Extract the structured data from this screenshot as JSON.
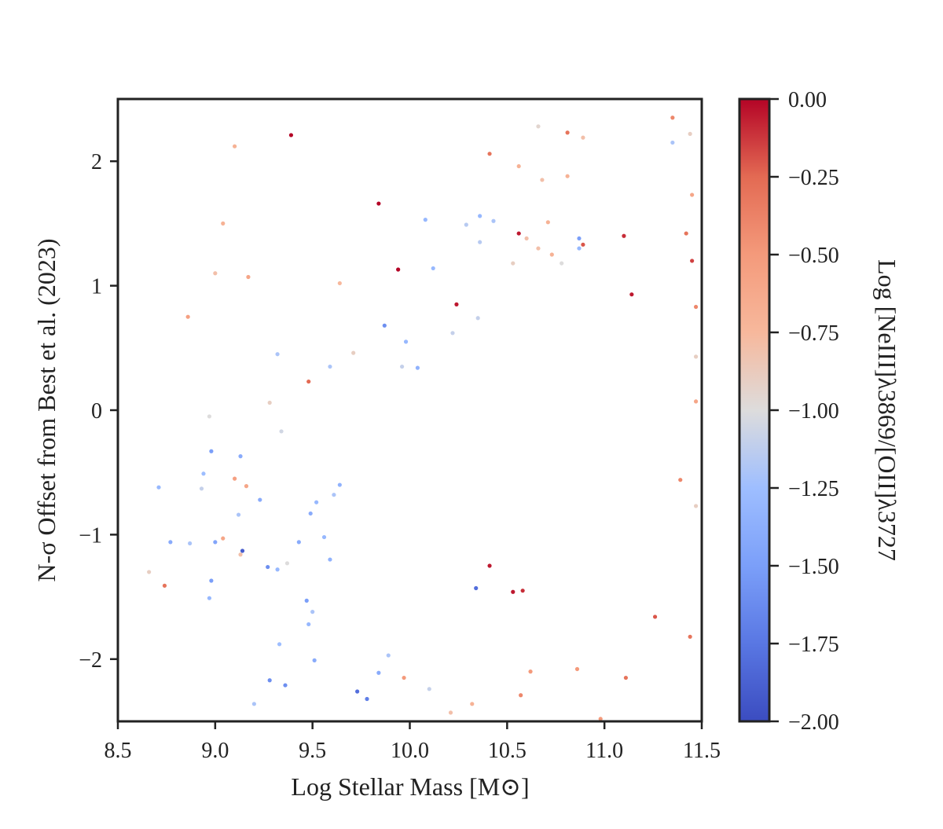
{
  "chart_data": {
    "type": "scatter",
    "title": "",
    "xlabel": "Log Stellar Mass [M⊙]",
    "ylabel": "N-σ Offset from Best et al. (2023)",
    "xlim": [
      8.5,
      11.5
    ],
    "ylim": [
      -2.5,
      2.5
    ],
    "x_ticks": [
      "8.5",
      "9.0",
      "9.5",
      "10.0",
      "10.5",
      "11.0",
      "11.5"
    ],
    "y_ticks": [
      "−2",
      "−1",
      "0",
      "1",
      "2"
    ],
    "grid": false,
    "colorbar": {
      "label": "Log [NeIII]λ3869/[OII]λ3727",
      "colormap": "coolwarm",
      "range": [
        -2.0,
        0.0
      ],
      "ticks": [
        "0.00",
        "−0.25",
        "−0.50",
        "−0.75",
        "−1.00",
        "−1.25",
        "−1.50",
        "−1.75",
        "−2.00"
      ]
    },
    "points": [
      [
        9.39,
        2.21,
        0.0
      ],
      [
        9.84,
        1.66,
        0.0
      ],
      [
        9.94,
        1.13,
        0.0
      ],
      [
        10.24,
        0.85,
        -0.05
      ],
      [
        10.56,
        1.42,
        -0.05
      ],
      [
        9.48,
        0.23,
        -0.25
      ],
      [
        10.41,
        2.06,
        -0.3
      ],
      [
        10.81,
        2.23,
        -0.3
      ],
      [
        9.1,
        2.12,
        -0.7
      ],
      [
        9.04,
        1.5,
        -0.7
      ],
      [
        9.0,
        1.1,
        -0.8
      ],
      [
        9.17,
        1.07,
        -0.6
      ],
      [
        8.86,
        0.75,
        -0.55
      ],
      [
        9.64,
        1.02,
        -0.75
      ],
      [
        10.56,
        1.96,
        -0.7
      ],
      [
        10.66,
        2.28,
        -0.95
      ],
      [
        10.89,
        2.19,
        -0.8
      ],
      [
        11.35,
        2.35,
        -0.4
      ],
      [
        11.44,
        2.22,
        -0.9
      ],
      [
        11.35,
        2.15,
        -1.2
      ],
      [
        10.68,
        1.85,
        -0.8
      ],
      [
        10.81,
        1.88,
        -0.7
      ],
      [
        10.73,
        1.25,
        -0.7
      ],
      [
        10.66,
        1.3,
        -0.8
      ],
      [
        10.6,
        1.38,
        -0.8
      ],
      [
        10.71,
        1.51,
        -0.7
      ],
      [
        10.43,
        1.52,
        -1.2
      ],
      [
        10.36,
        1.56,
        -1.3
      ],
      [
        10.29,
        1.49,
        -1.15
      ],
      [
        10.08,
        1.53,
        -1.3
      ],
      [
        10.36,
        1.35,
        -1.15
      ],
      [
        10.12,
        1.14,
        -1.3
      ],
      [
        9.87,
        0.68,
        -1.6
      ],
      [
        10.22,
        0.62,
        -1.1
      ],
      [
        10.35,
        0.74,
        -1.1
      ],
      [
        9.98,
        0.55,
        -1.3
      ],
      [
        10.04,
        0.34,
        -1.35
      ],
      [
        9.96,
        0.35,
        -1.1
      ],
      [
        9.71,
        0.46,
        -0.9
      ],
      [
        9.59,
        0.35,
        -1.2
      ],
      [
        9.32,
        0.45,
        -1.2
      ],
      [
        9.28,
        0.06,
        -0.9
      ],
      [
        9.34,
        -0.17,
        -1.05
      ],
      [
        8.97,
        -0.05,
        -1.0
      ],
      [
        9.13,
        -0.37,
        -1.4
      ],
      [
        8.98,
        -0.33,
        -1.5
      ],
      [
        9.1,
        -0.55,
        -0.55
      ],
      [
        9.16,
        -0.61,
        -0.6
      ],
      [
        8.94,
        -0.51,
        -1.25
      ],
      [
        8.71,
        -0.62,
        -1.3
      ],
      [
        8.93,
        -0.63,
        -1.1
      ],
      [
        9.23,
        -0.72,
        -1.4
      ],
      [
        9.12,
        -0.84,
        -1.2
      ],
      [
        8.77,
        -1.06,
        -1.4
      ],
      [
        8.87,
        -1.07,
        -1.2
      ],
      [
        9.0,
        -1.06,
        -1.45
      ],
      [
        9.04,
        -1.03,
        -0.6
      ],
      [
        9.13,
        -1.16,
        -0.8
      ],
      [
        9.14,
        -1.13,
        -1.9
      ],
      [
        8.66,
        -1.3,
        -0.9
      ],
      [
        8.74,
        -1.41,
        -0.3
      ],
      [
        8.98,
        -1.37,
        -1.5
      ],
      [
        8.97,
        -1.51,
        -1.3
      ],
      [
        9.27,
        -1.26,
        -1.6
      ],
      [
        9.32,
        -1.28,
        -1.3
      ],
      [
        9.37,
        -1.23,
        -1.0
      ],
      [
        9.43,
        -1.06,
        -1.4
      ],
      [
        9.47,
        -1.53,
        -1.5
      ],
      [
        9.5,
        -1.62,
        -1.2
      ],
      [
        9.48,
        -1.72,
        -1.3
      ],
      [
        9.51,
        -2.01,
        -1.4
      ],
      [
        9.28,
        -2.17,
        -1.6
      ],
      [
        9.36,
        -2.21,
        -1.6
      ],
      [
        9.2,
        -2.36,
        -1.2
      ],
      [
        9.33,
        -1.88,
        -1.25
      ],
      [
        9.56,
        -1.02,
        -1.3
      ],
      [
        9.59,
        -1.2,
        -1.35
      ],
      [
        9.49,
        -0.83,
        -1.4
      ],
      [
        9.52,
        -0.74,
        -1.3
      ],
      [
        9.61,
        -0.68,
        -1.2
      ],
      [
        9.64,
        -0.6,
        -1.35
      ],
      [
        9.78,
        -2.32,
        -1.7
      ],
      [
        9.73,
        -2.26,
        -1.8
      ],
      [
        9.84,
        -2.11,
        -1.4
      ],
      [
        9.89,
        -1.97,
        -1.2
      ],
      [
        9.97,
        -2.15,
        -0.5
      ],
      [
        10.1,
        -2.24,
        -1.1
      ],
      [
        10.21,
        -2.43,
        -0.8
      ],
      [
        10.32,
        -2.36,
        -0.7
      ],
      [
        10.57,
        -2.29,
        -0.4
      ],
      [
        10.62,
        -2.1,
        -0.5
      ],
      [
        10.86,
        -2.08,
        -0.5
      ],
      [
        10.98,
        -2.48,
        -0.5
      ],
      [
        11.11,
        -2.15,
        -0.3
      ],
      [
        11.26,
        -1.66,
        -0.2
      ],
      [
        11.44,
        -1.82,
        -0.3
      ],
      [
        11.47,
        -0.77,
        -0.9
      ],
      [
        11.42,
        1.42,
        -0.3
      ],
      [
        11.45,
        1.2,
        -0.15
      ],
      [
        11.47,
        0.83,
        -0.4
      ],
      [
        11.47,
        0.43,
        -0.9
      ],
      [
        11.47,
        0.07,
        -0.6
      ],
      [
        11.39,
        -0.56,
        -0.4
      ],
      [
        11.45,
        1.73,
        -0.6
      ],
      [
        11.1,
        1.4,
        -0.1
      ],
      [
        11.14,
        0.93,
        -0.05
      ],
      [
        10.89,
        1.33,
        -0.2
      ],
      [
        10.87,
        1.3,
        -1.3
      ],
      [
        10.87,
        1.38,
        -1.5
      ],
      [
        10.53,
        1.18,
        -0.9
      ],
      [
        10.78,
        1.18,
        -1.0
      ],
      [
        10.53,
        -1.46,
        -0.05
      ],
      [
        10.58,
        -1.45,
        -0.1
      ],
      [
        10.41,
        -1.25,
        -0.05
      ],
      [
        10.34,
        -1.43,
        -1.8
      ]
    ]
  }
}
